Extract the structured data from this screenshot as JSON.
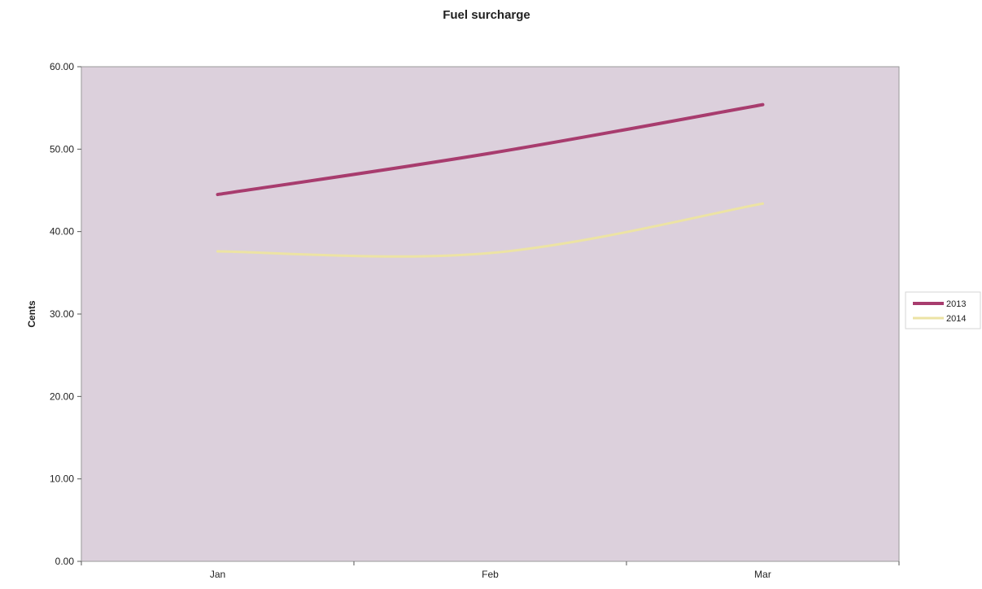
{
  "chart_data": {
    "type": "line",
    "title": "Fuel surcharge",
    "xlabel": "",
    "ylabel": "Cents",
    "categories": [
      "Jan",
      "Feb",
      "Mar"
    ],
    "ylim": [
      0,
      60
    ],
    "yticks": [
      "0.00",
      "10.00",
      "20.00",
      "30.00",
      "40.00",
      "50.00",
      "60.00"
    ],
    "grid": false,
    "legend_position": "right",
    "plot_background": "#dcd0dc",
    "series": [
      {
        "name": "2013",
        "values": [
          44.5,
          49.5,
          55.4
        ],
        "color": "#a83c6e"
      },
      {
        "name": "2014",
        "values": [
          37.6,
          37.4,
          43.4
        ],
        "color": "#ece3a4"
      }
    ]
  }
}
